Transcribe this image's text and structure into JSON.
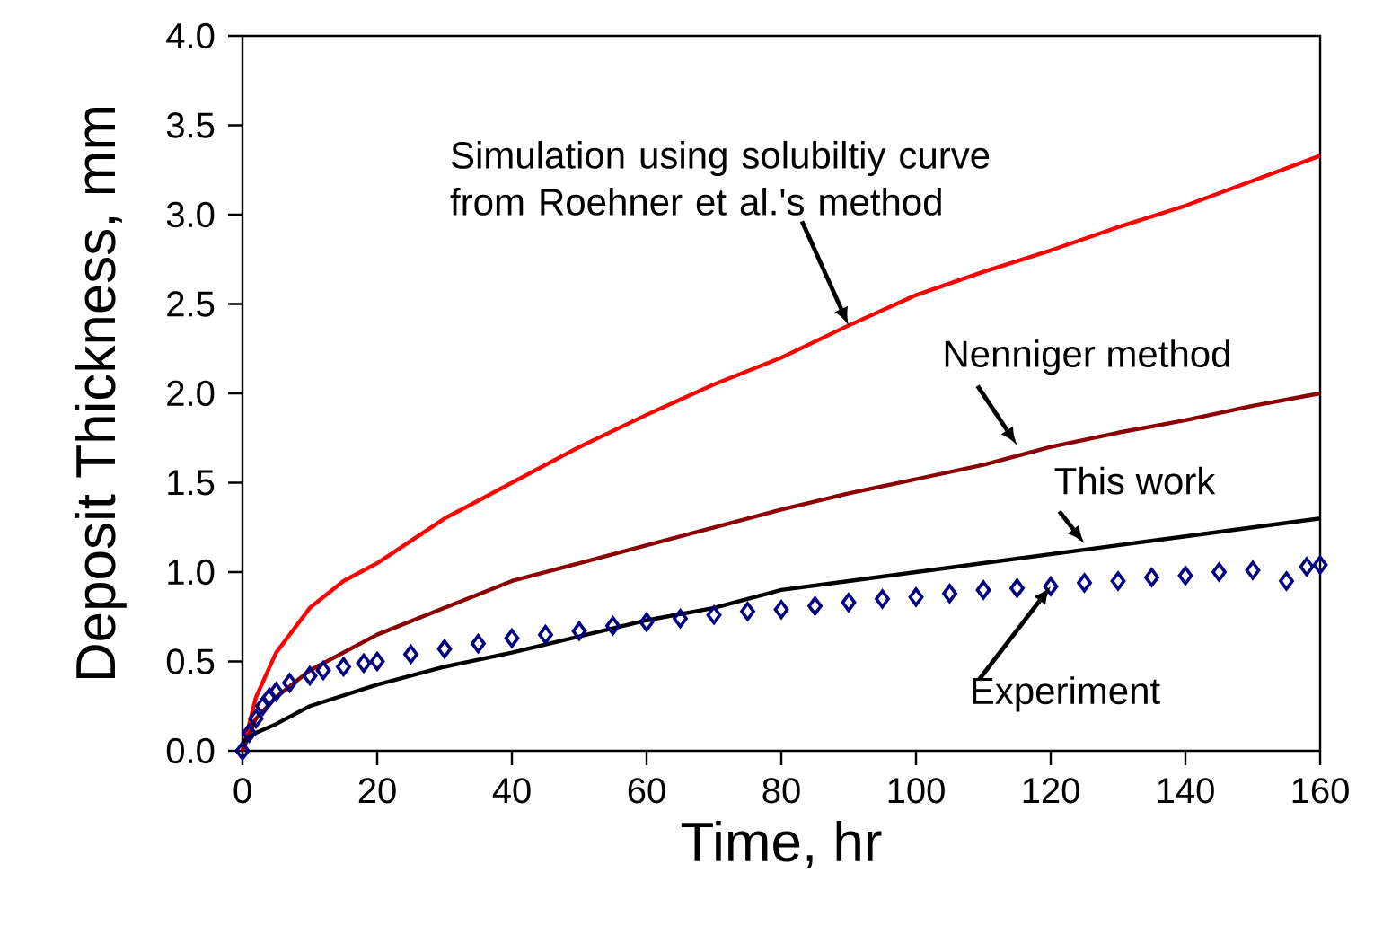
{
  "chart_data": {
    "type": "line",
    "xlabel": "Time, hr",
    "ylabel": "Deposit Thickness, mm",
    "xlim": [
      0,
      160
    ],
    "ylim": [
      0,
      4.0
    ],
    "xticks": [
      0,
      20,
      40,
      60,
      80,
      100,
      120,
      140,
      160
    ],
    "yticks": [
      {
        "value": 0,
        "label": "0.0"
      },
      {
        "value": 0.5,
        "label": "0.5"
      },
      {
        "value": 1,
        "label": "1.0"
      },
      {
        "value": 1.5,
        "label": "1.5"
      },
      {
        "value": 2,
        "label": "2.0"
      },
      {
        "value": 2.5,
        "label": "2.5"
      },
      {
        "value": 3,
        "label": "3.0"
      },
      {
        "value": 3.5,
        "label": "3.5"
      },
      {
        "value": 4,
        "label": "4.0"
      }
    ],
    "series": [
      {
        "color": "#ff0000",
        "x": [
          0,
          2,
          5,
          10,
          15,
          20,
          30,
          40,
          50,
          60,
          70,
          80,
          90,
          100,
          110,
          120,
          130,
          140,
          150,
          160
        ],
        "values": [
          0,
          0.3,
          0.55,
          0.8,
          0.95,
          1.05,
          1.3,
          1.5,
          1.7,
          1.88,
          2.05,
          2.2,
          2.38,
          2.55,
          2.68,
          2.8,
          2.93,
          3.05,
          3.19,
          3.33
        ]
      },
      {
        "color": "#8b0000",
        "x": [
          0,
          2,
          5,
          10,
          20,
          30,
          40,
          50,
          60,
          70,
          80,
          90,
          100,
          110,
          120,
          130,
          140,
          150,
          160
        ],
        "values": [
          0,
          0.18,
          0.3,
          0.45,
          0.65,
          0.8,
          0.95,
          1.05,
          1.15,
          1.25,
          1.35,
          1.44,
          1.52,
          1.6,
          1.7,
          1.78,
          1.85,
          1.93,
          2.0
        ]
      },
      {
        "color": "#000000",
        "x": [
          0,
          2,
          5,
          10,
          20,
          30,
          40,
          50,
          60,
          70,
          80,
          90,
          100,
          110,
          120,
          130,
          140,
          150,
          160
        ],
        "values": [
          0.05,
          0.1,
          0.15,
          0.25,
          0.37,
          0.47,
          0.55,
          0.64,
          0.73,
          0.8,
          0.9,
          0.95,
          1.0,
          1.05,
          1.1,
          1.15,
          1.2,
          1.25,
          1.3
        ]
      },
      {
        "type": "scatter",
        "color": "#000080",
        "marker": "diamond",
        "x": [
          0,
          1,
          2,
          3,
          4,
          5,
          7,
          10,
          12,
          15,
          18,
          20,
          25,
          30,
          35,
          40,
          45,
          50,
          55,
          60,
          65,
          70,
          75,
          80,
          85,
          90,
          95,
          100,
          105,
          110,
          115,
          120,
          125,
          130,
          135,
          140,
          145,
          150,
          155,
          158,
          160
        ],
        "values": [
          0,
          0.1,
          0.18,
          0.25,
          0.3,
          0.33,
          0.38,
          0.42,
          0.45,
          0.47,
          0.49,
          0.5,
          0.54,
          0.57,
          0.6,
          0.63,
          0.65,
          0.67,
          0.7,
          0.72,
          0.74,
          0.76,
          0.78,
          0.79,
          0.81,
          0.83,
          0.85,
          0.86,
          0.88,
          0.9,
          0.91,
          0.92,
          0.94,
          0.95,
          0.97,
          0.98,
          1.0,
          1.01,
          0.95,
          1.03,
          1.04
        ]
      }
    ],
    "annotations": [
      {
        "text": "Simulation using solubiltiy curve from Roehner et al.'s method",
        "x": 90,
        "y": 2.38
      },
      {
        "text": "Nenniger method",
        "x": 115,
        "y": 1.71
      },
      {
        "text": "This work",
        "x": 125,
        "y": 1.16
      },
      {
        "text": "Experiment",
        "x": 120,
        "y": 0.92
      }
    ]
  }
}
